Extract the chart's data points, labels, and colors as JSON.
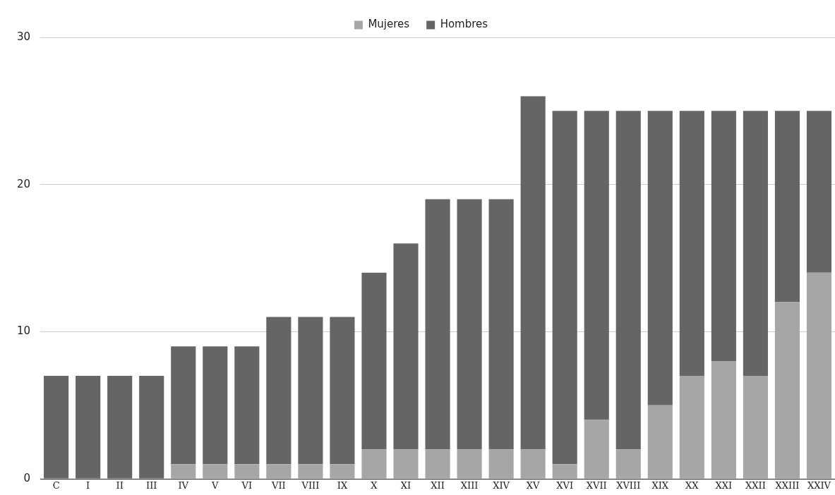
{
  "chart_data": {
    "type": "bar",
    "stacked": true,
    "legend": "top",
    "grid": "y",
    "categories": [
      "C",
      "I",
      "II",
      "III",
      "IV",
      "V",
      "VI",
      "VII",
      "VIII",
      "IX",
      "X",
      "XI",
      "XII",
      "XIII",
      "XIV",
      "XV",
      "XVI",
      "XVII",
      "XVIII",
      "XIX",
      "XX",
      "XXI",
      "XXII",
      "XXIII",
      "XXIV"
    ],
    "series": [
      {
        "name": "Mujeres",
        "color": "#a6a6a6",
        "values": [
          0,
          0,
          0,
          0,
          1,
          1,
          1,
          1,
          1,
          1,
          2,
          2,
          2,
          2,
          2,
          2,
          1,
          4,
          2,
          5,
          7,
          8,
          7,
          12,
          14
        ]
      },
      {
        "name": "Hombres",
        "color": "#666465",
        "values": [
          7,
          7,
          7,
          7,
          8,
          8,
          8,
          10,
          10,
          10,
          12,
          14,
          17,
          17,
          17,
          24,
          24,
          21,
          23,
          20,
          18,
          17,
          18,
          13,
          11
        ]
      }
    ],
    "ylim": [
      0,
      30
    ],
    "yticks": [
      0,
      10,
      20,
      30
    ]
  }
}
